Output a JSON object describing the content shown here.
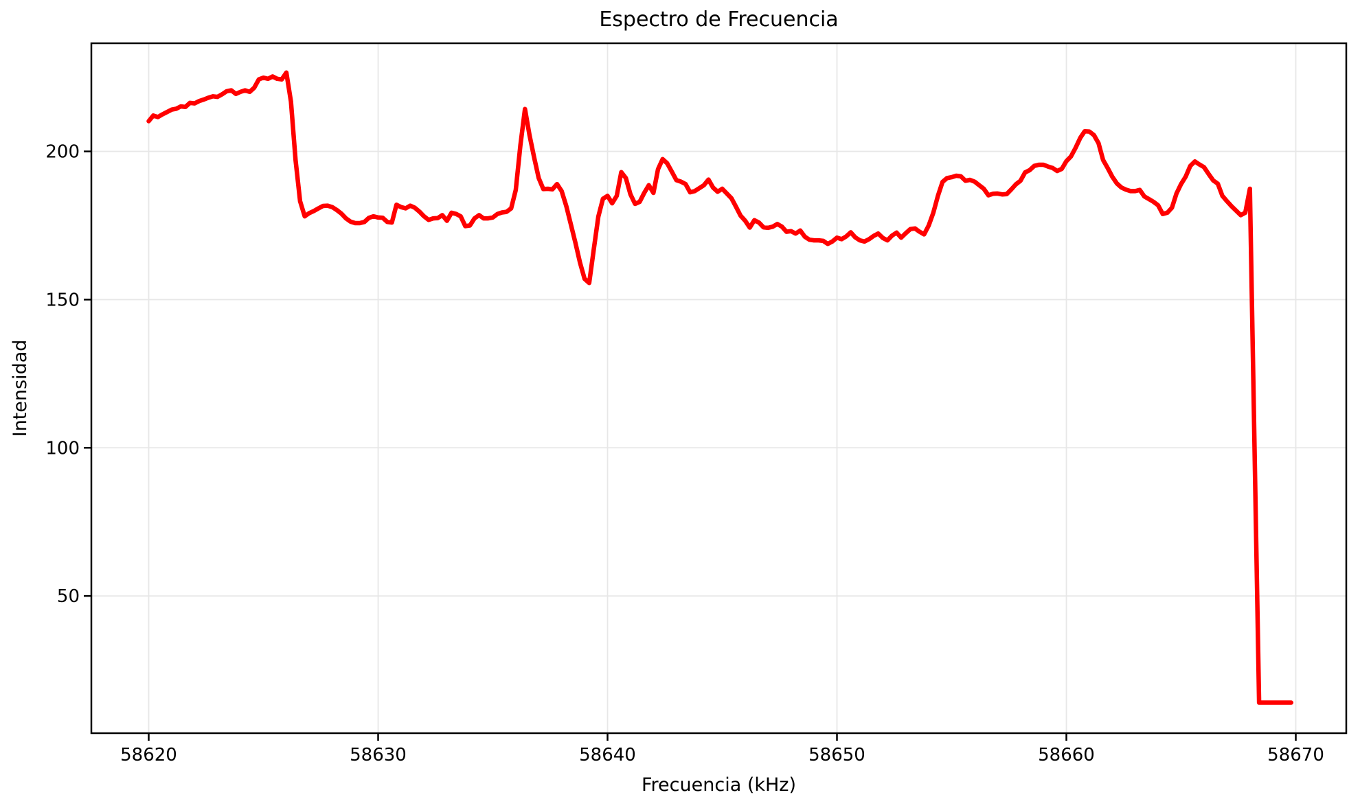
{
  "figure": {
    "background": "#ffffff",
    "spine_color": "#000000",
    "grid_color": "#e7e7e7",
    "tick_color": "#000000"
  },
  "chart_data": {
    "type": "line",
    "title": "Espectro de Frecuencia",
    "xlabel": "Frecuencia (kHz)",
    "ylabel": "Intensidad",
    "xlim": [
      58617.5,
      58672.2
    ],
    "ylim": [
      3.7,
      236.5
    ],
    "xticks": [
      58620,
      58630,
      58640,
      58650,
      58660,
      58670
    ],
    "yticks": [
      50,
      100,
      150,
      200
    ],
    "grid": true,
    "legend_position": "none",
    "series": [
      {
        "name": "intensidad",
        "color": "#ff0000",
        "linewidth": 6.5,
        "points": [
          [
            58620.0,
            210.2
          ],
          [
            58620.2,
            212.1
          ],
          [
            58620.4,
            211.6
          ],
          [
            58620.6,
            212.5
          ],
          [
            58620.8,
            213.3
          ],
          [
            58621.0,
            214.1
          ],
          [
            58621.2,
            214.4
          ],
          [
            58621.4,
            215.2
          ],
          [
            58621.6,
            215.0
          ],
          [
            58621.8,
            216.4
          ],
          [
            58622.0,
            216.2
          ],
          [
            58622.2,
            217.0
          ],
          [
            58622.4,
            217.5
          ],
          [
            58622.6,
            218.1
          ],
          [
            58622.8,
            218.6
          ],
          [
            58623.0,
            218.4
          ],
          [
            58623.2,
            219.3
          ],
          [
            58623.4,
            220.3
          ],
          [
            58623.6,
            220.6
          ],
          [
            58623.8,
            219.4
          ],
          [
            58624.0,
            220.1
          ],
          [
            58624.2,
            220.6
          ],
          [
            58624.4,
            220.1
          ],
          [
            58624.6,
            221.5
          ],
          [
            58624.8,
            224.3
          ],
          [
            58625.0,
            224.9
          ],
          [
            58625.2,
            224.5
          ],
          [
            58625.4,
            225.3
          ],
          [
            58625.6,
            224.5
          ],
          [
            58625.8,
            224.3
          ],
          [
            58626.0,
            226.6
          ],
          [
            58626.2,
            216.8
          ],
          [
            58626.4,
            197.1
          ],
          [
            58626.6,
            183.2
          ],
          [
            58626.8,
            178.1
          ],
          [
            58627.0,
            179.2
          ],
          [
            58627.2,
            179.9
          ],
          [
            58627.4,
            180.8
          ],
          [
            58627.6,
            181.6
          ],
          [
            58627.8,
            181.7
          ],
          [
            58628.0,
            181.2
          ],
          [
            58628.2,
            180.2
          ],
          [
            58628.4,
            179.0
          ],
          [
            58628.6,
            177.4
          ],
          [
            58628.8,
            176.3
          ],
          [
            58629.0,
            175.8
          ],
          [
            58629.2,
            175.8
          ],
          [
            58629.4,
            176.2
          ],
          [
            58629.6,
            177.6
          ],
          [
            58629.8,
            178.1
          ],
          [
            58630.0,
            177.7
          ],
          [
            58630.2,
            177.6
          ],
          [
            58630.4,
            176.2
          ],
          [
            58630.6,
            176.0
          ],
          [
            58630.8,
            182.0
          ],
          [
            58631.0,
            181.2
          ],
          [
            58631.2,
            180.8
          ],
          [
            58631.4,
            181.7
          ],
          [
            58631.6,
            181.0
          ],
          [
            58631.8,
            179.7
          ],
          [
            58632.0,
            178.1
          ],
          [
            58632.2,
            176.9
          ],
          [
            58632.4,
            177.4
          ],
          [
            58632.6,
            177.5
          ],
          [
            58632.8,
            178.5
          ],
          [
            58633.0,
            176.6
          ],
          [
            58633.2,
            179.3
          ],
          [
            58633.4,
            178.9
          ],
          [
            58633.6,
            178.1
          ],
          [
            58633.8,
            174.8
          ],
          [
            58634.0,
            175.0
          ],
          [
            58634.2,
            177.4
          ],
          [
            58634.4,
            178.5
          ],
          [
            58634.6,
            177.4
          ],
          [
            58634.8,
            177.4
          ],
          [
            58635.0,
            177.7
          ],
          [
            58635.2,
            178.9
          ],
          [
            58635.4,
            179.4
          ],
          [
            58635.6,
            179.6
          ],
          [
            58635.8,
            180.8
          ],
          [
            58636.0,
            187.0
          ],
          [
            58636.2,
            202.0
          ],
          [
            58636.4,
            214.3
          ],
          [
            58636.6,
            205.5
          ],
          [
            58636.8,
            198.0
          ],
          [
            58637.0,
            191.0
          ],
          [
            58637.2,
            187.3
          ],
          [
            58637.4,
            187.4
          ],
          [
            58637.6,
            187.2
          ],
          [
            58637.8,
            189.0
          ],
          [
            58638.0,
            186.6
          ],
          [
            58638.2,
            181.6
          ],
          [
            58638.4,
            175.4
          ],
          [
            58638.6,
            169.2
          ],
          [
            58638.8,
            162.5
          ],
          [
            58639.0,
            157.0
          ],
          [
            58639.2,
            155.6
          ],
          [
            58639.4,
            167.0
          ],
          [
            58639.6,
            178.0
          ],
          [
            58639.8,
            184.0
          ],
          [
            58640.0,
            185.0
          ],
          [
            58640.2,
            182.5
          ],
          [
            58640.4,
            185.0
          ],
          [
            58640.6,
            193.0
          ],
          [
            58640.8,
            191.0
          ],
          [
            58641.0,
            185.5
          ],
          [
            58641.2,
            182.3
          ],
          [
            58641.4,
            183.0
          ],
          [
            58641.6,
            186.0
          ],
          [
            58641.8,
            188.6
          ],
          [
            58642.0,
            186.0
          ],
          [
            58642.2,
            194.0
          ],
          [
            58642.4,
            197.4
          ],
          [
            58642.6,
            196.0
          ],
          [
            58642.8,
            193.2
          ],
          [
            58643.0,
            190.3
          ],
          [
            58643.2,
            189.8
          ],
          [
            58643.4,
            189.0
          ],
          [
            58643.6,
            186.2
          ],
          [
            58643.8,
            186.6
          ],
          [
            58644.0,
            187.6
          ],
          [
            58644.2,
            188.6
          ],
          [
            58644.4,
            190.5
          ],
          [
            58644.6,
            187.8
          ],
          [
            58644.8,
            186.4
          ],
          [
            58645.0,
            187.4
          ],
          [
            58645.2,
            185.8
          ],
          [
            58645.4,
            184.2
          ],
          [
            58645.6,
            181.3
          ],
          [
            58645.8,
            178.3
          ],
          [
            58646.0,
            176.6
          ],
          [
            58646.2,
            174.3
          ],
          [
            58646.4,
            176.8
          ],
          [
            58646.6,
            176.0
          ],
          [
            58646.8,
            174.4
          ],
          [
            58647.0,
            174.2
          ],
          [
            58647.2,
            174.6
          ],
          [
            58647.4,
            175.5
          ],
          [
            58647.6,
            174.6
          ],
          [
            58647.8,
            172.9
          ],
          [
            58648.0,
            173.1
          ],
          [
            58648.2,
            172.3
          ],
          [
            58648.4,
            173.3
          ],
          [
            58648.6,
            171.2
          ],
          [
            58648.8,
            170.2
          ],
          [
            58649.0,
            170.0
          ],
          [
            58649.2,
            170.0
          ],
          [
            58649.4,
            169.8
          ],
          [
            58649.6,
            168.8
          ],
          [
            58649.8,
            169.6
          ],
          [
            58650.0,
            170.9
          ],
          [
            58650.2,
            170.4
          ],
          [
            58650.4,
            171.3
          ],
          [
            58650.6,
            172.7
          ],
          [
            58650.8,
            171.0
          ],
          [
            58651.0,
            170.0
          ],
          [
            58651.2,
            169.6
          ],
          [
            58651.4,
            170.4
          ],
          [
            58651.6,
            171.5
          ],
          [
            58651.8,
            172.3
          ],
          [
            58652.0,
            170.8
          ],
          [
            58652.2,
            170.0
          ],
          [
            58652.4,
            171.6
          ],
          [
            58652.6,
            172.6
          ],
          [
            58652.8,
            170.9
          ],
          [
            58653.0,
            172.4
          ],
          [
            58653.2,
            173.8
          ],
          [
            58653.4,
            174.0
          ],
          [
            58653.6,
            172.9
          ],
          [
            58653.8,
            172.0
          ],
          [
            58654.0,
            175.0
          ],
          [
            58654.2,
            179.3
          ],
          [
            58654.4,
            185.0
          ],
          [
            58654.6,
            189.7
          ],
          [
            58654.8,
            191.0
          ],
          [
            58655.0,
            191.3
          ],
          [
            58655.2,
            191.8
          ],
          [
            58655.4,
            191.6
          ],
          [
            58655.6,
            190.1
          ],
          [
            58655.8,
            190.4
          ],
          [
            58656.0,
            189.8
          ],
          [
            58656.2,
            188.6
          ],
          [
            58656.4,
            187.4
          ],
          [
            58656.6,
            185.2
          ],
          [
            58656.8,
            185.7
          ],
          [
            58657.0,
            185.8
          ],
          [
            58657.2,
            185.5
          ],
          [
            58657.4,
            185.6
          ],
          [
            58657.6,
            187.2
          ],
          [
            58657.8,
            188.9
          ],
          [
            58658.0,
            190.1
          ],
          [
            58658.2,
            192.9
          ],
          [
            58658.4,
            193.7
          ],
          [
            58658.6,
            195.1
          ],
          [
            58658.8,
            195.5
          ],
          [
            58659.0,
            195.5
          ],
          [
            58659.2,
            194.9
          ],
          [
            58659.4,
            194.4
          ],
          [
            58659.6,
            193.4
          ],
          [
            58659.8,
            194.1
          ],
          [
            58660.0,
            196.7
          ],
          [
            58660.2,
            198.3
          ],
          [
            58660.4,
            201.2
          ],
          [
            58660.6,
            204.5
          ],
          [
            58660.8,
            206.8
          ],
          [
            58661.0,
            206.7
          ],
          [
            58661.2,
            205.5
          ],
          [
            58661.4,
            202.8
          ],
          [
            58661.6,
            197.1
          ],
          [
            58661.8,
            194.4
          ],
          [
            58662.0,
            191.5
          ],
          [
            58662.2,
            189.2
          ],
          [
            58662.4,
            187.8
          ],
          [
            58662.6,
            187.1
          ],
          [
            58662.8,
            186.6
          ],
          [
            58663.0,
            186.6
          ],
          [
            58663.2,
            187.0
          ],
          [
            58663.4,
            184.8
          ],
          [
            58663.6,
            183.9
          ],
          [
            58663.8,
            183.0
          ],
          [
            58664.0,
            181.8
          ],
          [
            58664.2,
            178.9
          ],
          [
            58664.4,
            179.3
          ],
          [
            58664.6,
            181.0
          ],
          [
            58664.8,
            185.8
          ],
          [
            58665.0,
            189.0
          ],
          [
            58665.2,
            191.5
          ],
          [
            58665.4,
            195.1
          ],
          [
            58665.6,
            196.6
          ],
          [
            58665.8,
            195.6
          ],
          [
            58666.0,
            194.7
          ],
          [
            58666.2,
            192.4
          ],
          [
            58666.4,
            190.2
          ],
          [
            58666.6,
            189.1
          ],
          [
            58666.8,
            185.0
          ],
          [
            58667.0,
            183.2
          ],
          [
            58667.2,
            181.5
          ],
          [
            58667.4,
            180.0
          ],
          [
            58667.6,
            178.5
          ],
          [
            58667.8,
            179.3
          ],
          [
            58668.0,
            187.4
          ],
          [
            58668.4,
            14.0
          ],
          [
            58669.0,
            14.0
          ],
          [
            58669.8,
            14.0
          ]
        ]
      }
    ]
  }
}
